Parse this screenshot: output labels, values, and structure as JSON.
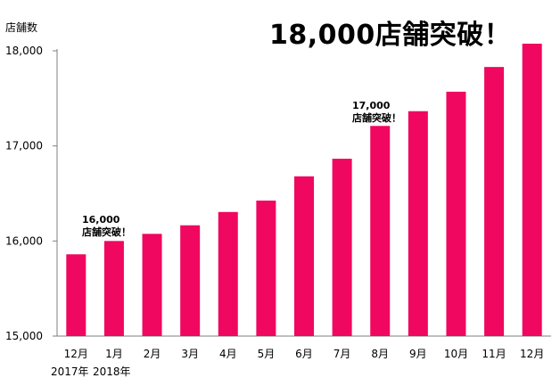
{
  "chart_data": {
    "type": "bar",
    "title": "18,000店舗突破！",
    "ylabel": "店舗数",
    "xlabel": "",
    "categories": [
      "12月",
      "1月",
      "2月",
      "3月",
      "4月",
      "5月",
      "6月",
      "7月",
      "8月",
      "9月",
      "10月",
      "11月",
      "12月"
    ],
    "values": [
      15860,
      16000,
      16075,
      16165,
      16305,
      16425,
      16680,
      16865,
      17210,
      17365,
      17570,
      17830,
      18075
    ],
    "ylim": [
      15000,
      18000
    ],
    "yticks": [
      "15,000",
      "16,000",
      "17,000",
      "18,000"
    ],
    "year_labels": [
      "2017年",
      "2018年"
    ],
    "annotations": [
      {
        "line1": "16,000",
        "line2": "店舗突破！"
      },
      {
        "line1": "17,000",
        "line2": "店舗突破！"
      }
    ],
    "grid": false,
    "colors": {
      "bar": "#f0075f",
      "axis": "#7f7f7f",
      "text": "#000000"
    }
  }
}
